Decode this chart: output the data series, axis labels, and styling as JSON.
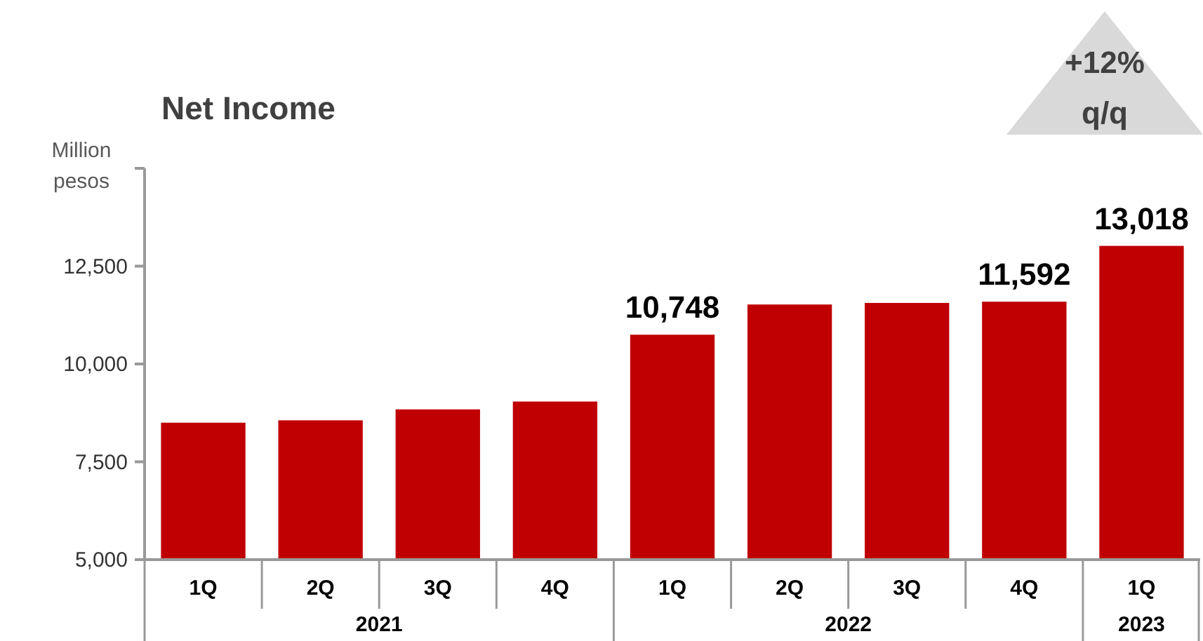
{
  "chart_data": {
    "type": "bar",
    "title": "Net Income",
    "ylabel": "Million pesos",
    "categories": [
      "1Q",
      "2Q",
      "3Q",
      "4Q",
      "1Q",
      "2Q",
      "3Q",
      "4Q",
      "1Q"
    ],
    "values": [
      8500,
      8560,
      8840,
      9040,
      10748,
      11520,
      11560,
      11592,
      13018
    ],
    "value_labels": [
      null,
      null,
      null,
      null,
      "10,748",
      null,
      null,
      "11,592",
      "13,018"
    ],
    "color": "#c00000",
    "ylim": [
      5000,
      15000
    ],
    "yticks": [
      {
        "value": 5000,
        "label": "5,000"
      },
      {
        "value": 7500,
        "label": "7,500"
      },
      {
        "value": 10000,
        "label": "10,000"
      },
      {
        "value": 12500,
        "label": "12,500"
      },
      {
        "value": 15000,
        "label": null
      }
    ],
    "grid": false,
    "annotations": [
      "+12% q/q",
      "2021",
      "2022",
      "2023"
    ]
  }
}
